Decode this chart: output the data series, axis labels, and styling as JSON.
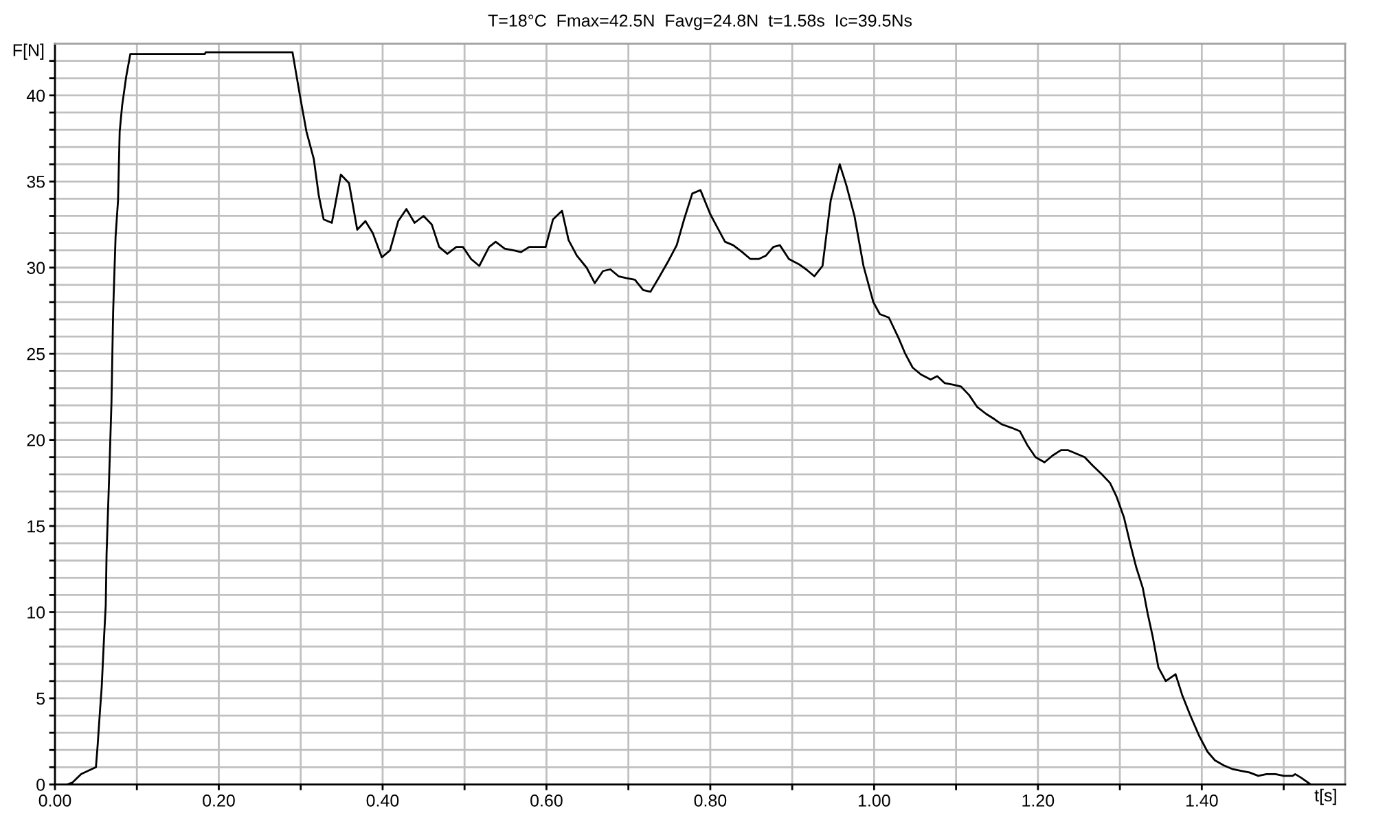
{
  "chart_data": {
    "type": "line",
    "title": "T=18°C  Fmax=42.5N  Favg=24.8N  t=1.58s  Ic=39.5Ns",
    "xlabel": "t[s]",
    "ylabel": "F[N]",
    "x": [
      0.015,
      0.021,
      0.032,
      0.05,
      0.052,
      0.055,
      0.057,
      0.06,
      0.062,
      0.063,
      0.065,
      0.067,
      0.069,
      0.071,
      0.074,
      0.077,
      0.079,
      0.082,
      0.087,
      0.092,
      0.183,
      0.184,
      0.29,
      0.299,
      0.307,
      0.316,
      0.322,
      0.328,
      0.338,
      0.349,
      0.359,
      0.369,
      0.379,
      0.388,
      0.399,
      0.409,
      0.419,
      0.429,
      0.439,
      0.45,
      0.46,
      0.469,
      0.479,
      0.49,
      0.498,
      0.508,
      0.518,
      0.53,
      0.538,
      0.549,
      0.56,
      0.569,
      0.579,
      0.599,
      0.608,
      0.619,
      0.627,
      0.637,
      0.649,
      0.659,
      0.669,
      0.678,
      0.688,
      0.697,
      0.708,
      0.718,
      0.727,
      0.737,
      0.749,
      0.759,
      0.768,
      0.778,
      0.788,
      0.8,
      0.809,
      0.818,
      0.828,
      0.839,
      0.849,
      0.859,
      0.868,
      0.877,
      0.885,
      0.896,
      0.908,
      0.917,
      0.927,
      0.937,
      0.947,
      0.958,
      0.966,
      0.976,
      0.987,
      0.999,
      1.007,
      1.018,
      1.03,
      1.038,
      1.047,
      1.057,
      1.069,
      1.077,
      1.086,
      1.097,
      1.106,
      1.116,
      1.126,
      1.137,
      1.147,
      1.156,
      1.168,
      1.178,
      1.187,
      1.197,
      1.208,
      1.218,
      1.228,
      1.237,
      1.247,
      1.257,
      1.267,
      1.278,
      1.288,
      1.296,
      1.305,
      1.313,
      1.32,
      1.328,
      1.334,
      1.34,
      1.347,
      1.356,
      1.368,
      1.376,
      1.386,
      1.397,
      1.407,
      1.416,
      1.427,
      1.437,
      1.447,
      1.458,
      1.469,
      1.479,
      1.49,
      1.5,
      1.511,
      1.514,
      1.521,
      1.533
    ],
    "values": [
      0,
      0.1,
      0.6,
      1.0,
      2.2,
      4.3,
      5.6,
      8.6,
      10.4,
      13.4,
      16.2,
      19.1,
      22.2,
      27.4,
      31.8,
      33.9,
      37.9,
      39.4,
      41.1,
      42.4,
      42.4,
      42.5,
      42.5,
      40.0,
      37.9,
      36.3,
      34.2,
      32.8,
      32.6,
      35.4,
      34.9,
      32.2,
      32.7,
      32.0,
      30.6,
      31.0,
      32.7,
      33.4,
      32.6,
      33.0,
      32.5,
      31.2,
      30.8,
      31.2,
      31.2,
      30.5,
      30.1,
      31.2,
      31.5,
      31.1,
      31.0,
      30.9,
      31.2,
      31.2,
      32.8,
      33.3,
      31.6,
      30.7,
      30.0,
      29.1,
      29.8,
      29.9,
      29.5,
      29.4,
      29.3,
      28.7,
      28.6,
      29.4,
      30.4,
      31.3,
      32.8,
      34.3,
      34.5,
      33.1,
      32.3,
      31.5,
      31.3,
      30.9,
      30.5,
      30.5,
      30.7,
      31.2,
      31.3,
      30.5,
      30.2,
      29.9,
      29.5,
      30.1,
      33.9,
      36.0,
      34.8,
      33.0,
      30.1,
      28.0,
      27.3,
      27.1,
      25.9,
      25.0,
      24.2,
      23.8,
      23.5,
      23.7,
      23.3,
      23.2,
      23.1,
      22.6,
      21.9,
      21.5,
      21.2,
      20.9,
      20.7,
      20.5,
      19.7,
      19.0,
      18.7,
      19.1,
      19.4,
      19.4,
      19.2,
      19.0,
      18.5,
      18.0,
      17.5,
      16.7,
      15.5,
      13.9,
      12.6,
      11.4,
      9.9,
      8.6,
      6.8,
      6.0,
      6.4,
      5.2,
      4.0,
      2.8,
      1.9,
      1.4,
      1.1,
      0.9,
      0.8,
      0.7,
      0.5,
      0.6,
      0.6,
      0.5,
      0.5,
      0.6,
      0.4,
      0
    ],
    "color": "#000000",
    "xlim": [
      0,
      1.575
    ],
    "ylim": [
      0,
      43
    ],
    "xticks": [
      {
        "value": 0,
        "label": "0.00"
      },
      {
        "value": 0.1,
        "label": null
      },
      {
        "value": 0.2,
        "label": "0.20"
      },
      {
        "value": 0.3,
        "label": null
      },
      {
        "value": 0.4,
        "label": "0.40"
      },
      {
        "value": 0.5,
        "label": null
      },
      {
        "value": 0.6,
        "label": "0.60"
      },
      {
        "value": 0.7,
        "label": null
      },
      {
        "value": 0.8,
        "label": "0.80"
      },
      {
        "value": 0.9,
        "label": null
      },
      {
        "value": 1.0,
        "label": "1.00"
      },
      {
        "value": 1.1,
        "label": null
      },
      {
        "value": 1.2,
        "label": "1.20"
      },
      {
        "value": 1.3,
        "label": null
      },
      {
        "value": 1.4,
        "label": "1.40"
      },
      {
        "value": 1.5,
        "label": null
      }
    ],
    "yticks": [
      0,
      {
        "value": 1,
        "label": null
      },
      {
        "value": 2,
        "label": null
      },
      {
        "value": 3,
        "label": null
      },
      {
        "value": 4,
        "label": null
      },
      5,
      {
        "value": 6,
        "label": null
      },
      {
        "value": 7,
        "label": null
      },
      {
        "value": 8,
        "label": null
      },
      {
        "value": 9,
        "label": null
      },
      10,
      {
        "value": 11,
        "label": null
      },
      {
        "value": 12,
        "label": null
      },
      {
        "value": 13,
        "label": null
      },
      {
        "value": 14,
        "label": null
      },
      15,
      {
        "value": 16,
        "label": null
      },
      {
        "value": 17,
        "label": null
      },
      {
        "value": 18,
        "label": null
      },
      {
        "value": 19,
        "label": null
      },
      20,
      {
        "value": 21,
        "label": null
      },
      {
        "value": 22,
        "label": null
      },
      {
        "value": 23,
        "label": null
      },
      {
        "value": 24,
        "label": null
      },
      25,
      {
        "value": 26,
        "label": null
      },
      {
        "value": 27,
        "label": null
      },
      {
        "value": 28,
        "label": null
      },
      {
        "value": 29,
        "label": null
      },
      30,
      {
        "value": 31,
        "label": null
      },
      {
        "value": 32,
        "label": null
      },
      {
        "value": 33,
        "label": null
      },
      {
        "value": 34,
        "label": null
      },
      35,
      {
        "value": 36,
        "label": null
      },
      {
        "value": 37,
        "label": null
      },
      {
        "value": 38,
        "label": null
      },
      {
        "value": 39,
        "label": null
      },
      40,
      {
        "value": 41,
        "label": null
      },
      {
        "value": 42,
        "label": null
      }
    ],
    "grid": true
  }
}
